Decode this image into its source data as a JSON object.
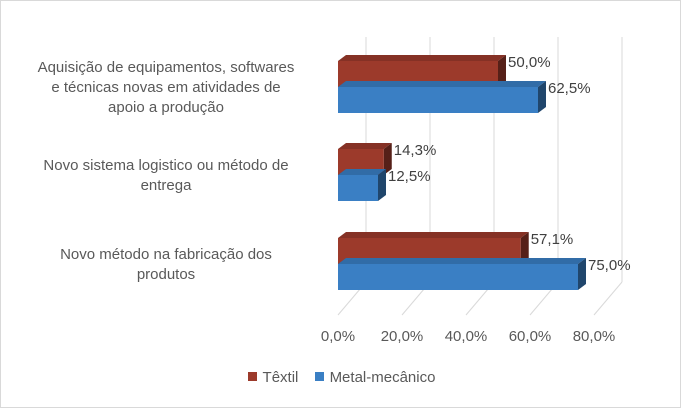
{
  "chart_data": {
    "type": "bar",
    "orientation": "horizontal",
    "style": "3d-clustered",
    "categories": [
      [
        "Aquisição de equipamentos, softwares",
        "e técnicas novas em atividades de",
        "apoio a produção"
      ],
      [
        "Novo sistema logistico ou método de",
        "entrega"
      ],
      [
        "Novo método na fabricação dos",
        "produtos"
      ]
    ],
    "series": [
      {
        "name": "Têxtil",
        "color": "#9c3a2b",
        "values": [
          50.0,
          14.3,
          57.1
        ],
        "labels": [
          "50,0%",
          "14,3%",
          "57,1%"
        ]
      },
      {
        "name": "Metal-mecânico",
        "color": "#3a7fc4",
        "values": [
          62.5,
          12.5,
          75.0
        ],
        "labels": [
          "62,5%",
          "12,5%",
          "75,0%"
        ]
      }
    ],
    "xlim": [
      0,
      80
    ],
    "xticks": [
      "0,0%",
      "20,0%",
      "40,0%",
      "60,0%",
      "80,0%"
    ],
    "grid": true,
    "legend_position": "bottom"
  }
}
